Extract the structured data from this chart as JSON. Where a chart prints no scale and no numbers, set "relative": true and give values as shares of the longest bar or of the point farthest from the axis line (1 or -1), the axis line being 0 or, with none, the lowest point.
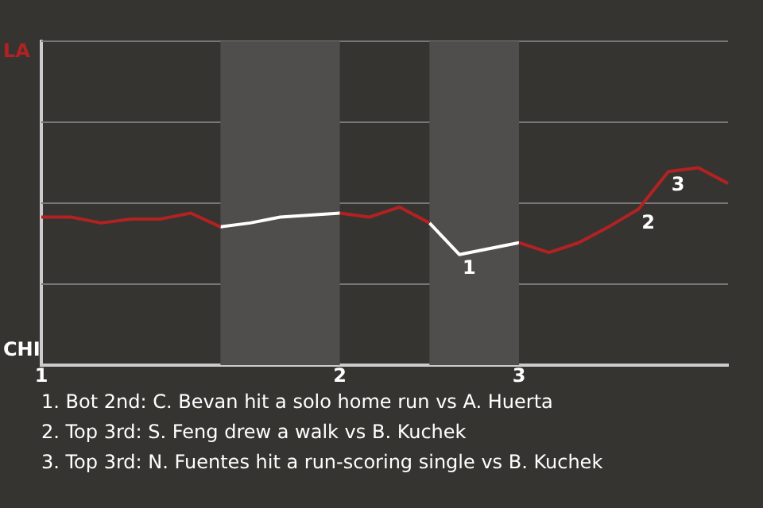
{
  "chart_data": {
    "type": "line",
    "relative": true,
    "categories": [
      "1",
      null,
      null,
      null,
      null,
      null,
      null,
      null,
      null,
      null,
      "2",
      null,
      null,
      null,
      null,
      null,
      "3",
      null,
      null,
      null,
      null,
      null,
      null,
      null
    ],
    "series": [
      {
        "color": "#b22222",
        "values": [
          0.75,
          0.75,
          0.72,
          0.74,
          0.74,
          0.77,
          0.7,
          null,
          null,
          null,
          0.77,
          0.75,
          0.8,
          0.72,
          null,
          null,
          0.62,
          0.57,
          0.62,
          0.7,
          0.79,
          0.98,
          1,
          0.92
        ]
      },
      {
        "color": "#ffffff",
        "values": [
          null,
          null,
          null,
          null,
          null,
          null,
          0.7,
          0.72,
          0.75,
          0.76,
          0.77,
          null,
          null,
          0.72,
          0.56,
          0.59,
          0.62,
          null,
          null,
          null,
          null,
          null,
          null,
          null
        ]
      }
    ],
    "marker": "none",
    "line_style": "solid",
    "ref_lines": [
      {
        "axis": "y",
        "value": 0.41,
        "color": "#777777"
      },
      {
        "axis": "y",
        "value": 0.82,
        "color": "#777777"
      },
      {
        "axis": "y",
        "value": 1.23,
        "color": "#777777"
      },
      {
        "axis": "y",
        "value": 1.64,
        "color": "#777777"
      }
    ],
    "annotations": [
      "LA",
      "CHI",
      {
        "text": "1",
        "y": 0.56
      },
      {
        "text": "2",
        "y": 0.79
      },
      {
        "text": "3",
        "y": 0.98
      },
      "1. Bot 2nd: C. Bevan hit a solo home run vs A. Huerta",
      "2. Top 3rd: S. Feng drew a walk vs B. Kuchek",
      "3. Top 3rd: N. Fuentes hit a run-scoring single vs B. Kuchek"
    ]
  }
}
